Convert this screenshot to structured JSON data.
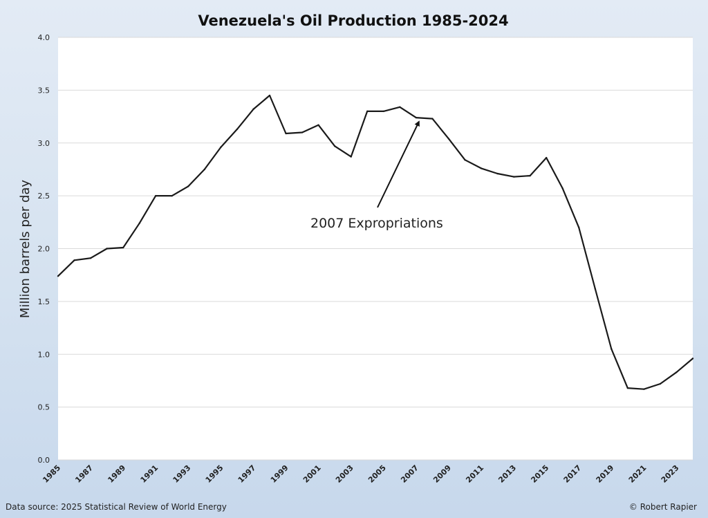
{
  "chart_data": {
    "type": "line",
    "title": "Venezuela's Oil Production 1985-2024",
    "xlabel": "",
    "ylabel": "Million barrels per day",
    "xlim": [
      1985,
      2024
    ],
    "ylim": [
      0,
      4.0
    ],
    "yticks": [
      "0.0",
      "0.5",
      "1.0",
      "1.5",
      "2.0",
      "2.5",
      "3.0",
      "3.5",
      "4.0"
    ],
    "xticks": [
      "1985",
      "1987",
      "1989",
      "1991",
      "1993",
      "1995",
      "1997",
      "1999",
      "2001",
      "2003",
      "2005",
      "2007",
      "2009",
      "2011",
      "2013",
      "2015",
      "2017",
      "2019",
      "2021",
      "2023"
    ],
    "grid": "horizontal",
    "series": [
      {
        "x": [
          1985,
          1986,
          1987,
          1988,
          1989,
          1990,
          1991,
          1992,
          1993,
          1994,
          1995,
          1996,
          1997,
          1998,
          1999,
          2000,
          2001,
          2002,
          2003,
          2004,
          2005,
          2006,
          2007,
          2008,
          2009,
          2010,
          2011,
          2012,
          2013,
          2014,
          2015,
          2016,
          2017,
          2018,
          2019,
          2020,
          2021,
          2022,
          2023,
          2024
        ],
        "values": [
          1.74,
          1.89,
          1.91,
          2.0,
          2.01,
          2.24,
          2.5,
          2.5,
          2.59,
          2.75,
          2.96,
          3.13,
          3.32,
          3.45,
          3.09,
          3.1,
          3.17,
          2.97,
          2.87,
          3.3,
          3.3,
          3.34,
          3.24,
          3.23,
          3.04,
          2.84,
          2.76,
          2.71,
          2.68,
          2.69,
          2.86,
          2.57,
          2.2,
          1.62,
          1.05,
          0.68,
          0.67,
          0.72,
          0.83,
          0.96
        ]
      }
    ],
    "annotations": [
      {
        "text": "2007 Expropriations",
        "x": 2007,
        "y": 3.24
      }
    ],
    "line_color": "#1a1a1a",
    "source": "Data source: 2025 Statistical Review of World Energy",
    "credit": "© Robert Rapier"
  }
}
